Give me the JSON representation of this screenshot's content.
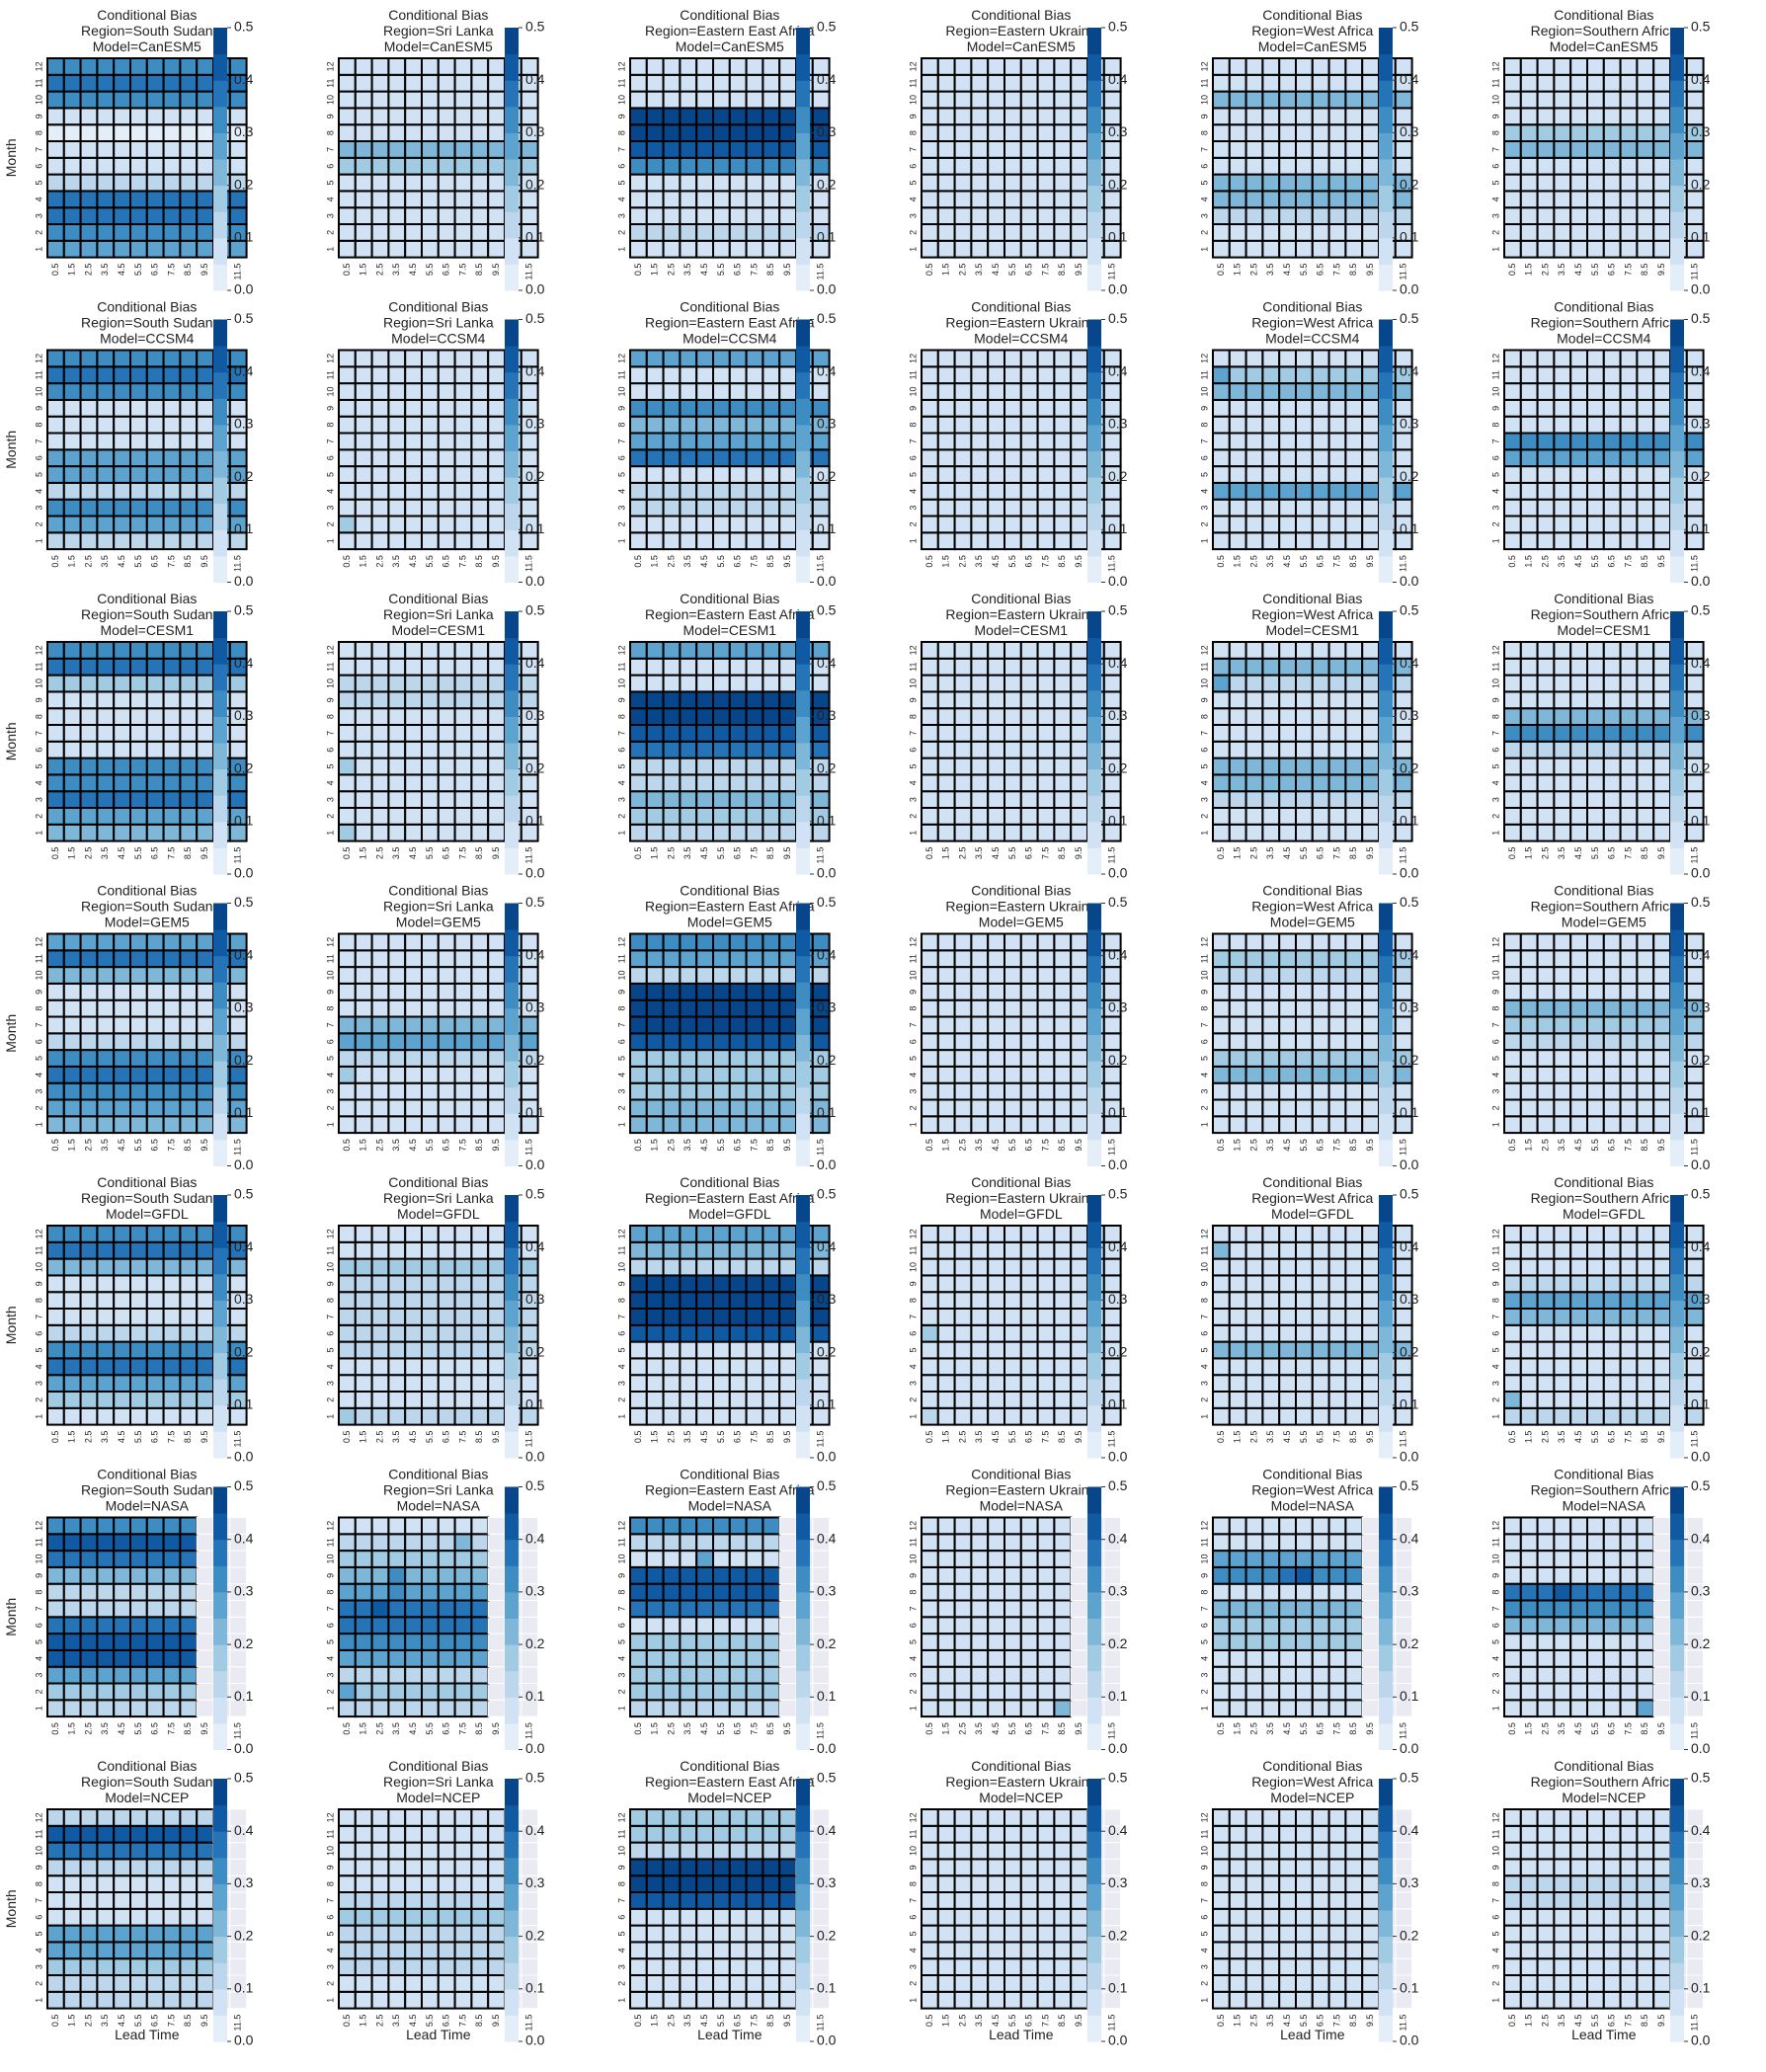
{
  "chart_data": {
    "type": "heatmap",
    "title_prefix": "Conditional Bias",
    "region_prefix": "Region=",
    "model_prefix": "Model=",
    "regions": [
      "South Sudan",
      "Sri Lanka",
      "Eastern East Africa",
      "Eastern Ukraine",
      "West Africa",
      "Southern Africa"
    ],
    "models": [
      "CanESM5",
      "CCSM4",
      "CESM1",
      "GEM5",
      "GFDL",
      "NASA",
      "NCEP"
    ],
    "xlabel": "Lead Time",
    "ylabel": "Month",
    "x_ticks": [
      "0.5",
      "1.5",
      "2.5",
      "3.5",
      "4.5",
      "5.5",
      "6.5",
      "7.5",
      "8.5",
      "9.5",
      "10.5",
      "11.5"
    ],
    "y_ticks": [
      "1",
      "2",
      "3",
      "4",
      "5",
      "6",
      "7",
      "8",
      "9",
      "10",
      "11",
      "12"
    ],
    "colorbar": {
      "min": 0.0,
      "max": 0.5,
      "levels": 10,
      "ticks": [
        "0.0",
        "0.1",
        "0.2",
        "0.3",
        "0.4",
        "0.5"
      ],
      "colors": [
        "#e3eef9",
        "#d0e2f3",
        "#bcd7ec",
        "#a1cbe2",
        "#7fb7d9",
        "#5ca3cf",
        "#3d8dc3",
        "#2474b7",
        "#105aa4",
        "#08468b"
      ]
    },
    "missing_color": "#eaeaf2",
    "valid_leads": {
      "NASA": 9,
      "NCEP": 10
    },
    "panel_month_values": {
      "South Sudan": {
        "CanESM5": [
          0.27,
          0.32,
          0.37,
          0.37,
          0.12,
          0.06,
          0.05,
          0.04,
          0.06,
          0.32,
          0.39,
          0.3
        ],
        "CCSM4": [
          0.12,
          0.25,
          0.3,
          0.12,
          0.27,
          0.28,
          0.06,
          0.05,
          0.08,
          0.3,
          0.38,
          0.3
        ],
        "CESM1": [
          0.22,
          0.28,
          0.38,
          0.32,
          0.3,
          0.06,
          0.05,
          0.05,
          0.05,
          0.18,
          0.38,
          0.3
        ],
        "GEM5": [
          0.2,
          0.25,
          0.3,
          0.38,
          0.3,
          0.12,
          0.06,
          0.06,
          0.08,
          0.2,
          0.35,
          0.28
        ],
        "GFDL": [
          0.05,
          0.15,
          0.28,
          0.35,
          0.3,
          0.1,
          0.06,
          0.06,
          0.08,
          0.22,
          0.35,
          0.3
        ],
        "NASA": [
          0.12,
          0.18,
          0.25,
          0.42,
          0.42,
          0.35,
          0.12,
          0.12,
          0.2,
          0.38,
          0.4,
          0.32
        ],
        "NCEP": [
          0.1,
          0.12,
          0.18,
          0.28,
          0.25,
          0.08,
          0.05,
          0.05,
          0.1,
          0.38,
          0.4,
          0.14
        ]
      },
      "Sri Lanka": {
        "CanESM5": [
          0.06,
          0.06,
          0.06,
          0.06,
          0.07,
          0.18,
          0.2,
          0.06,
          0.06,
          0.06,
          0.06,
          0.06
        ],
        "CCSM4": [
          0.05,
          0.05,
          0.05,
          0.05,
          0.05,
          0.05,
          0.05,
          0.05,
          0.05,
          0.05,
          0.05,
          0.05
        ],
        "CESM1": [
          0.06,
          0.07,
          0.08,
          0.08,
          0.08,
          0.08,
          0.08,
          0.09,
          0.1,
          0.1,
          0.08,
          0.08
        ],
        "GEM5": [
          0.08,
          0.08,
          0.08,
          0.08,
          0.1,
          0.25,
          0.2,
          0.08,
          0.07,
          0.07,
          0.07,
          0.06
        ],
        "GFDL": [
          0.1,
          0.08,
          0.08,
          0.08,
          0.1,
          0.1,
          0.1,
          0.1,
          0.12,
          0.16,
          0.08,
          0.08
        ],
        "NASA": [
          0.1,
          0.15,
          0.12,
          0.25,
          0.3,
          0.35,
          0.38,
          0.28,
          0.2,
          0.18,
          0.12,
          0.08
        ],
        "NCEP": [
          0.06,
          0.08,
          0.1,
          0.1,
          0.1,
          0.15,
          0.1,
          0.06,
          0.06,
          0.08,
          0.06,
          0.06
        ]
      },
      "Eastern East Africa": {
        "CanESM5": [
          0.08,
          0.14,
          0.08,
          0.08,
          0.08,
          0.3,
          0.42,
          0.45,
          0.45,
          0.06,
          0.05,
          0.05
        ],
        "CCSM4": [
          0.08,
          0.08,
          0.1,
          0.1,
          0.08,
          0.35,
          0.25,
          0.2,
          0.3,
          0.06,
          0.06,
          0.28
        ],
        "CESM1": [
          0.1,
          0.18,
          0.22,
          0.1,
          0.1,
          0.35,
          0.42,
          0.45,
          0.45,
          0.06,
          0.08,
          0.28
        ],
        "GEM5": [
          0.22,
          0.2,
          0.15,
          0.15,
          0.15,
          0.4,
          0.45,
          0.45,
          0.45,
          0.1,
          0.25,
          0.3
        ],
        "GFDL": [
          0.06,
          0.05,
          0.08,
          0.08,
          0.08,
          0.44,
          0.45,
          0.45,
          0.45,
          0.1,
          0.2,
          0.25
        ],
        "NASA": [
          0.1,
          0.15,
          0.15,
          0.15,
          0.15,
          0.08,
          0.35,
          0.42,
          0.4,
          0.08,
          0.12,
          0.3
        ],
        "NCEP": [
          0.06,
          0.06,
          0.06,
          0.06,
          0.06,
          0.06,
          0.42,
          0.45,
          0.45,
          0.1,
          0.15,
          0.18
        ]
      },
      "Eastern Ukraine": {
        "CanESM5": [
          0.06,
          0.06,
          0.06,
          0.06,
          0.06,
          0.06,
          0.06,
          0.06,
          0.06,
          0.06,
          0.06,
          0.06
        ],
        "CCSM4": [
          0.05,
          0.05,
          0.05,
          0.05,
          0.05,
          0.05,
          0.05,
          0.05,
          0.05,
          0.05,
          0.05,
          0.05
        ],
        "CESM1": [
          0.05,
          0.05,
          0.05,
          0.05,
          0.05,
          0.05,
          0.05,
          0.05,
          0.05,
          0.05,
          0.05,
          0.05
        ],
        "GEM5": [
          0.05,
          0.05,
          0.05,
          0.05,
          0.05,
          0.05,
          0.05,
          0.05,
          0.05,
          0.05,
          0.05,
          0.05
        ],
        "GFDL": [
          0.08,
          0.07,
          0.07,
          0.07,
          0.07,
          0.07,
          0.07,
          0.07,
          0.07,
          0.07,
          0.07,
          0.07
        ],
        "NASA": [
          0.05,
          0.05,
          0.05,
          0.05,
          0.05,
          0.05,
          0.05,
          0.05,
          0.05,
          0.05,
          0.05,
          0.05
        ],
        "NCEP": [
          0.05,
          0.05,
          0.05,
          0.05,
          0.05,
          0.05,
          0.05,
          0.05,
          0.05,
          0.05,
          0.05,
          0.05
        ]
      },
      "West Africa": {
        "CanESM5": [
          0.06,
          0.06,
          0.1,
          0.2,
          0.22,
          0.07,
          0.06,
          0.06,
          0.08,
          0.22,
          0.08,
          0.06
        ],
        "CCSM4": [
          0.06,
          0.06,
          0.08,
          0.25,
          0.08,
          0.06,
          0.06,
          0.06,
          0.08,
          0.22,
          0.15,
          0.06
        ],
        "CESM1": [
          0.06,
          0.06,
          0.1,
          0.2,
          0.22,
          0.07,
          0.06,
          0.06,
          0.08,
          0.12,
          0.22,
          0.08
        ],
        "GEM5": [
          0.06,
          0.06,
          0.08,
          0.2,
          0.18,
          0.08,
          0.06,
          0.06,
          0.08,
          0.1,
          0.18,
          0.06
        ],
        "GFDL": [
          0.05,
          0.05,
          0.05,
          0.05,
          0.2,
          0.05,
          0.05,
          0.05,
          0.05,
          0.05,
          0.05,
          0.05
        ],
        "NASA": [
          0.05,
          0.05,
          0.05,
          0.08,
          0.18,
          0.18,
          0.22,
          0.08,
          0.3,
          0.25,
          0.08,
          0.06
        ],
        "NCEP": [
          0.05,
          0.05,
          0.08,
          0.08,
          0.08,
          0.08,
          0.08,
          0.08,
          0.08,
          0.08,
          0.08,
          0.05
        ]
      },
      "Southern Africa": {
        "CanESM5": [
          0.06,
          0.06,
          0.06,
          0.06,
          0.06,
          0.06,
          0.22,
          0.15,
          0.06,
          0.06,
          0.06,
          0.06
        ],
        "CCSM4": [
          0.08,
          0.06,
          0.06,
          0.06,
          0.06,
          0.25,
          0.3,
          0.08,
          0.06,
          0.06,
          0.06,
          0.06
        ],
        "CESM1": [
          0.05,
          0.05,
          0.05,
          0.05,
          0.05,
          0.1,
          0.3,
          0.2,
          0.08,
          0.05,
          0.05,
          0.05
        ],
        "GEM5": [
          0.05,
          0.05,
          0.05,
          0.05,
          0.05,
          0.12,
          0.18,
          0.22,
          0.05,
          0.05,
          0.05,
          0.05
        ],
        "GFDL": [
          0.1,
          0.05,
          0.05,
          0.05,
          0.05,
          0.08,
          0.22,
          0.25,
          0.12,
          0.05,
          0.05,
          0.05
        ],
        "NASA": [
          0.06,
          0.06,
          0.06,
          0.06,
          0.06,
          0.2,
          0.32,
          0.38,
          0.06,
          0.06,
          0.06,
          0.06
        ],
        "NCEP": [
          0.05,
          0.05,
          0.05,
          0.05,
          0.05,
          0.05,
          0.1,
          0.1,
          0.05,
          0.05,
          0.05,
          0.05
        ]
      }
    },
    "cell_overrides": [
      {
        "region": "Sri Lanka",
        "model": "CCSM4",
        "month": 2,
        "lead": 0.5,
        "value": 0.18
      },
      {
        "region": "Sri Lanka",
        "model": "CESM1",
        "month": 5,
        "lead": 0.5,
        "value": 0.18
      },
      {
        "region": "Sri Lanka",
        "model": "CESM1",
        "month": 1,
        "lead": 0.5,
        "value": 0.15
      },
      {
        "region": "Sri Lanka",
        "model": "GEM5",
        "month": 4,
        "lead": 0.5,
        "value": 0.15
      },
      {
        "region": "Sri Lanka",
        "model": "GFDL",
        "month": 1,
        "lead": 0.5,
        "value": 0.18
      },
      {
        "region": "Sri Lanka",
        "model": "NASA",
        "month": 9,
        "lead": 3.5,
        "value": 0.3
      },
      {
        "region": "Sri Lanka",
        "model": "NASA",
        "month": 8,
        "lead": 3.5,
        "value": 0.32
      },
      {
        "region": "Sri Lanka",
        "model": "NASA",
        "month": 7,
        "lead": 2.5,
        "value": 0.4
      },
      {
        "region": "Sri Lanka",
        "model": "NASA",
        "month": 11,
        "lead": 7.5,
        "value": 0.2
      },
      {
        "region": "Sri Lanka",
        "model": "NASA",
        "month": 2,
        "lead": 0.5,
        "value": 0.28
      },
      {
        "region": "Eastern East Africa",
        "model": "NASA",
        "month": 10,
        "lead": 4.5,
        "value": 0.28
      },
      {
        "region": "Eastern Ukraine",
        "model": "GFDL",
        "month": 6,
        "lead": 0.5,
        "value": 0.18
      },
      {
        "region": "Eastern Ukraine",
        "model": "GFDL",
        "month": 1,
        "lead": 0.5,
        "value": 0.12
      },
      {
        "region": "Eastern Ukraine",
        "model": "NASA",
        "month": 1,
        "lead": 8.5,
        "value": 0.2
      },
      {
        "region": "West Africa",
        "model": "CESM1",
        "month": 10,
        "lead": 0.5,
        "value": 0.28
      },
      {
        "region": "West Africa",
        "model": "CCSM4",
        "month": 11,
        "lead": 0.5,
        "value": 0.25
      },
      {
        "region": "West Africa",
        "model": "GFDL",
        "month": 11,
        "lead": 0.5,
        "value": 0.22
      },
      {
        "region": "West Africa",
        "model": "NASA",
        "month": 9,
        "lead": 5.5,
        "value": 0.42
      },
      {
        "region": "West Africa",
        "model": "NASA",
        "month": 9,
        "lead": 4.5,
        "value": 0.35
      },
      {
        "region": "Southern Africa",
        "model": "NASA",
        "month": 8,
        "lead": 3.5,
        "value": 0.42
      },
      {
        "region": "Southern Africa",
        "model": "NASA",
        "month": 1,
        "lead": 8.5,
        "value": 0.25
      },
      {
        "region": "Southern Africa",
        "model": "GFDL",
        "month": 2,
        "lead": 0.5,
        "value": 0.2
      }
    ]
  }
}
